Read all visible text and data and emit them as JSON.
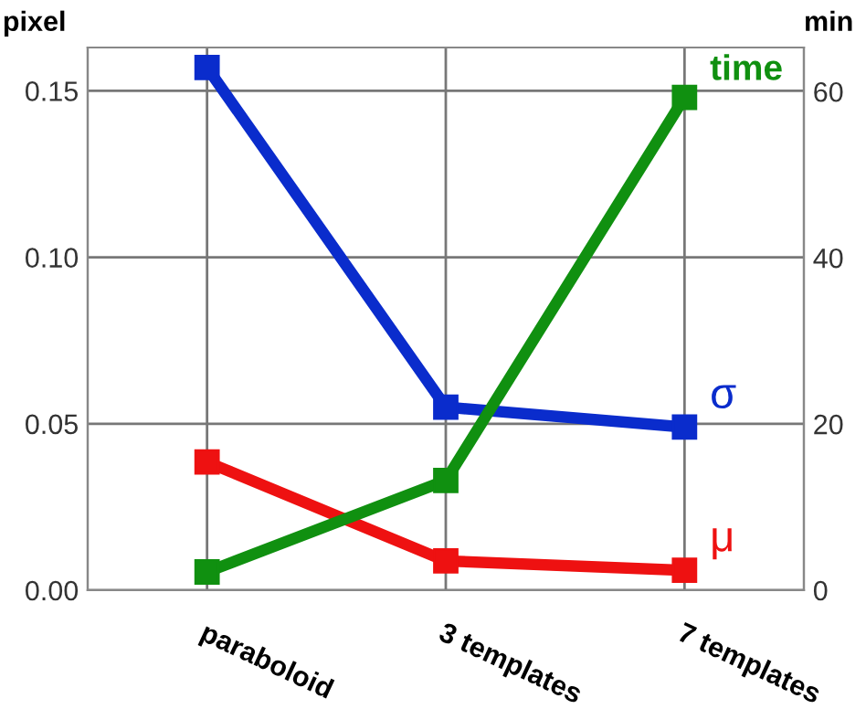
{
  "chart_data": {
    "type": "line",
    "ylabel": "pixel",
    "y2label": "min",
    "categories": [
      "paraboloid",
      "3 templates",
      "7 templates"
    ],
    "series": [
      {
        "name": "σ",
        "color": "#0a2ccc",
        "values": [
          0.157,
          0.055,
          0.049
        ]
      },
      {
        "name": "μ",
        "color": "#ee1111",
        "values": [
          0.0385,
          0.0088,
          0.006
        ]
      },
      {
        "name": "time",
        "color": "#109010",
        "values": [
          2.2,
          13.2,
          59.3
        ],
        "axis": "y2"
      }
    ],
    "ylim": [
      0,
      0.163
    ],
    "yticks": [
      {
        "value": 0,
        "label": "0.00"
      },
      {
        "value": 0.05,
        "label": "0.05"
      },
      {
        "value": 0.1,
        "label": "0.10"
      },
      {
        "value": 0.15,
        "label": "0.15"
      }
    ],
    "y2lim": [
      0,
      65.3
    ],
    "y2ticks": [
      0,
      20,
      40,
      60
    ],
    "grid": true,
    "marker": "square",
    "line_style": "solid",
    "legend": false
  }
}
